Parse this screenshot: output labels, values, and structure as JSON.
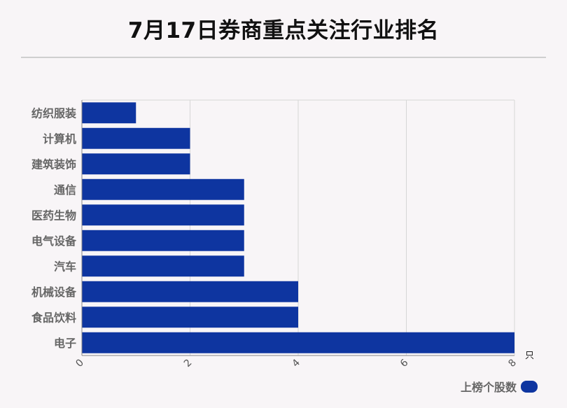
{
  "header": {
    "title": "7月17日券商重点关注行业排名"
  },
  "chart_data": {
    "type": "bar",
    "orientation": "horizontal",
    "categories": [
      "纺织服装",
      "计算机",
      "建筑装饰",
      "通信",
      "医药生物",
      "电气设备",
      "汽车",
      "机械设备",
      "食品饮料",
      "电子"
    ],
    "series": [
      {
        "name": "上榜个股数",
        "values": [
          1,
          2,
          2,
          3,
          3,
          3,
          3,
          4,
          4,
          8
        ]
      }
    ],
    "xlim": [
      0,
      8
    ],
    "xticks": [
      "0",
      "2",
      "4",
      "6",
      "8"
    ],
    "xunit": "只",
    "grid": true,
    "legend_position": "bottom-right",
    "bar_color": "#0e35a0"
  }
}
